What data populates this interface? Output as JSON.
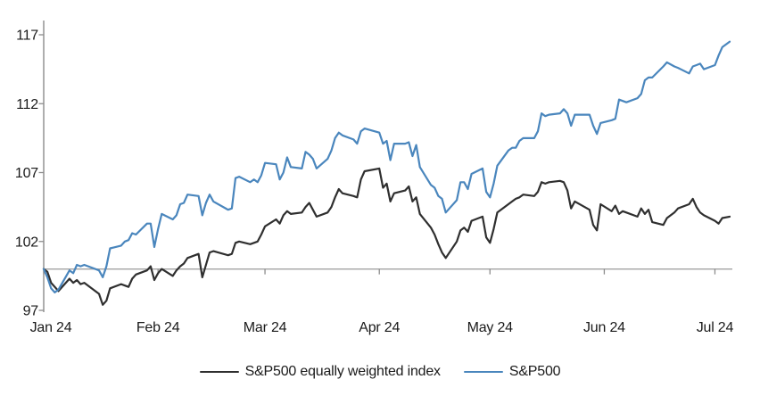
{
  "chart_data": {
    "type": "line",
    "title": "",
    "xlabel": "",
    "ylabel": "",
    "grid": false,
    "legend_position": "bottom",
    "x_axis": {
      "unit": "days since 2024-01-01",
      "range": [
        0,
        186
      ],
      "ticks": [
        {
          "label": "Jan 24",
          "day": 0
        },
        {
          "label": "Feb 24",
          "day": 31
        },
        {
          "label": "Mar 24",
          "day": 60
        },
        {
          "label": "Apr 24",
          "day": 91
        },
        {
          "label": "May 24",
          "day": 121
        },
        {
          "label": "Jun 24",
          "day": 152
        },
        {
          "label": "Jul 24",
          "day": 182
        }
      ]
    },
    "y_axis": {
      "ticks": [
        97,
        102,
        107,
        112,
        117
      ],
      "range": [
        97,
        118
      ],
      "baseline": 100
    },
    "x": [
      0,
      1,
      2,
      3,
      4,
      7,
      8,
      9,
      10,
      11,
      15,
      16,
      17,
      18,
      21,
      22,
      23,
      24,
      25,
      28,
      29,
      30,
      31,
      32,
      35,
      36,
      37,
      38,
      39,
      42,
      43,
      44,
      45,
      46,
      50,
      51,
      52,
      53,
      56,
      57,
      58,
      59,
      60,
      63,
      64,
      65,
      66,
      67,
      70,
      71,
      72,
      73,
      74,
      77,
      78,
      79,
      80,
      81,
      84,
      85,
      86,
      87,
      91,
      92,
      93,
      94,
      95,
      98,
      99,
      100,
      101,
      102,
      105,
      106,
      107,
      108,
      109,
      112,
      113,
      114,
      115,
      116,
      119,
      120,
      121,
      122,
      123,
      126,
      127,
      128,
      129,
      130,
      133,
      134,
      135,
      136,
      137,
      140,
      141,
      142,
      143,
      144,
      148,
      149,
      150,
      151,
      154,
      155,
      156,
      157,
      158,
      161,
      162,
      163,
      164,
      165,
      168,
      169,
      171,
      172,
      175,
      176,
      177,
      178,
      179,
      182,
      183,
      184,
      186
    ],
    "series": [
      {
        "name": "S&P500 equally weighted index",
        "color": "#2f2f2f",
        "values": [
          100.0,
          99.8,
          99.0,
          98.7,
          98.4,
          99.3,
          99.0,
          99.2,
          98.9,
          99.0,
          98.2,
          97.4,
          97.7,
          98.6,
          98.9,
          98.8,
          98.7,
          99.3,
          99.6,
          99.9,
          100.2,
          99.2,
          99.7,
          100.0,
          99.5,
          99.9,
          100.2,
          100.4,
          100.8,
          101.1,
          99.4,
          100.3,
          101.2,
          101.3,
          101.0,
          101.1,
          101.9,
          102.0,
          101.8,
          101.9,
          102.0,
          102.5,
          103.1,
          103.6,
          103.3,
          103.9,
          104.2,
          104.0,
          104.1,
          104.5,
          104.8,
          104.3,
          103.8,
          104.1,
          104.5,
          105.2,
          105.8,
          105.5,
          105.3,
          105.2,
          106.5,
          107.1,
          107.3,
          105.9,
          106.2,
          104.9,
          105.5,
          105.7,
          106.0,
          104.9,
          105.2,
          104.0,
          103.0,
          102.5,
          101.8,
          101.2,
          100.8,
          102.0,
          102.8,
          103.0,
          102.7,
          103.5,
          103.8,
          102.3,
          101.9,
          102.9,
          104.1,
          104.7,
          104.9,
          105.1,
          105.2,
          105.4,
          105.3,
          105.6,
          106.3,
          106.2,
          106.3,
          106.4,
          106.3,
          105.7,
          104.4,
          104.9,
          104.3,
          103.2,
          102.8,
          104.7,
          104.2,
          104.6,
          104.0,
          104.2,
          104.1,
          103.8,
          104.4,
          104.0,
          104.3,
          103.4,
          103.2,
          103.7,
          104.1,
          104.4,
          104.7,
          105.1,
          104.5,
          104.1,
          103.9,
          103.5,
          103.3,
          103.7,
          103.8
        ]
      },
      {
        "name": "S&P500",
        "color": "#4a86bd",
        "values": [
          100.0,
          99.4,
          98.6,
          98.3,
          98.5,
          99.9,
          99.7,
          100.3,
          100.2,
          100.3,
          99.9,
          99.4,
          100.2,
          101.5,
          101.7,
          102.0,
          102.1,
          102.6,
          102.5,
          103.3,
          103.3,
          101.6,
          102.9,
          104.0,
          103.6,
          103.9,
          104.7,
          104.8,
          105.4,
          105.3,
          103.9,
          104.8,
          105.4,
          104.9,
          104.3,
          104.4,
          106.6,
          106.7,
          106.3,
          106.5,
          106.3,
          106.8,
          107.7,
          107.6,
          106.5,
          107.0,
          108.1,
          107.4,
          107.3,
          108.5,
          108.3,
          108.0,
          107.3,
          108.0,
          108.6,
          109.5,
          109.9,
          109.7,
          109.4,
          109.1,
          110.0,
          110.2,
          109.9,
          109.1,
          109.3,
          107.9,
          109.1,
          109.1,
          109.2,
          108.2,
          109.0,
          107.4,
          106.1,
          105.9,
          105.3,
          105.1,
          104.1,
          105.0,
          106.3,
          106.3,
          105.8,
          106.9,
          107.3,
          105.6,
          105.2,
          106.2,
          107.5,
          108.6,
          108.8,
          108.8,
          109.3,
          109.5,
          109.5,
          110.0,
          111.3,
          111.1,
          111.2,
          111.3,
          111.6,
          111.3,
          110.4,
          111.2,
          111.2,
          110.4,
          109.8,
          110.6,
          110.8,
          110.9,
          112.3,
          112.2,
          112.1,
          112.4,
          112.7,
          113.7,
          113.9,
          113.9,
          114.7,
          115.0,
          114.7,
          114.6,
          114.2,
          114.7,
          114.8,
          114.9,
          114.5,
          114.8,
          115.5,
          116.1,
          116.5
        ]
      }
    ]
  },
  "style": {
    "axis_color": "#8c8c8c",
    "baseline_color": "#a3a3a3",
    "text_color": "#1a1a1a"
  }
}
